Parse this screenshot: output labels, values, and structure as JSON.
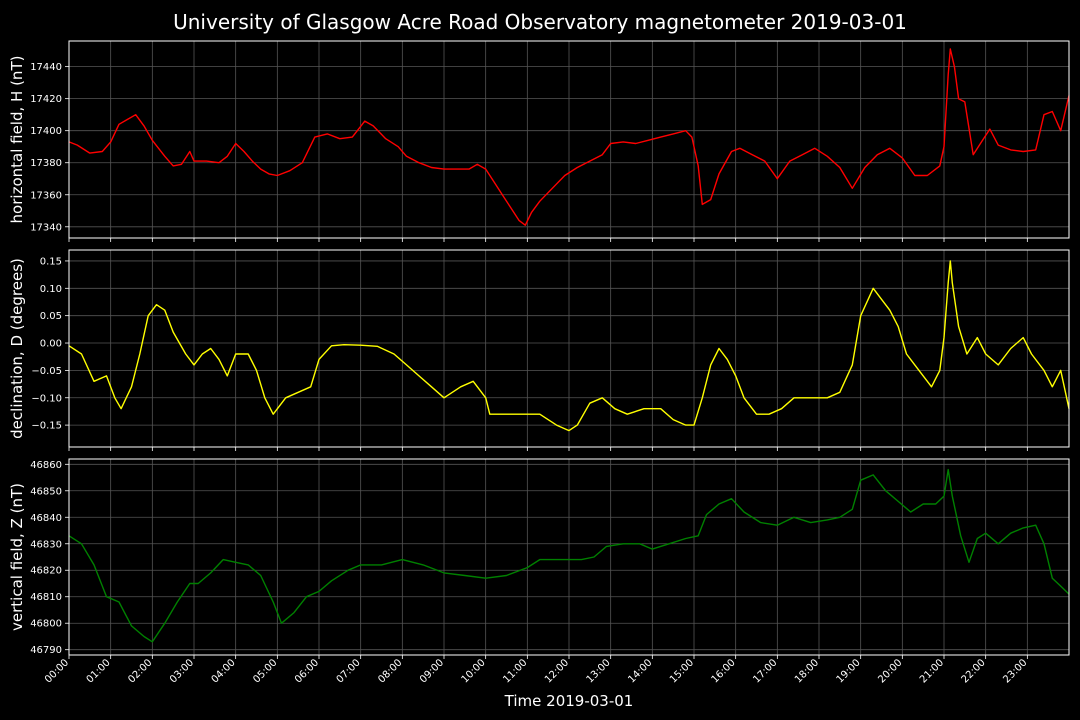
{
  "chart_data": {
    "type": "line",
    "title": "University of Glasgow Acre Road Observatory magnetometer 2019-03-01",
    "xlabel": "Time 2019-03-01",
    "x_range_hours": [
      0,
      24
    ],
    "x_tick_labels": [
      "00:00",
      "01:00",
      "02:00",
      "03:00",
      "04:00",
      "05:00",
      "06:00",
      "07:00",
      "08:00",
      "09:00",
      "10:00",
      "11:00",
      "12:00",
      "13:00",
      "14:00",
      "15:00",
      "16:00",
      "17:00",
      "18:00",
      "19:00",
      "20:00",
      "21:00",
      "22:00",
      "23:00"
    ],
    "grid": true,
    "panels": [
      {
        "ylabel": "horizontal field, H (nT)",
        "ylim": [
          17333,
          17456
        ],
        "yticks": [
          "17340",
          "17360",
          "17380",
          "17400",
          "17420",
          "17440"
        ],
        "ytick_values": [
          17340,
          17360,
          17380,
          17400,
          17420,
          17440
        ],
        "color": "#ff0000",
        "series": [
          [
            0,
            17393
          ],
          [
            0.2,
            17391
          ],
          [
            0.5,
            17386
          ],
          [
            0.8,
            17387
          ],
          [
            1.0,
            17393
          ],
          [
            1.2,
            17404
          ],
          [
            1.4,
            17407
          ],
          [
            1.6,
            17410
          ],
          [
            1.8,
            17403
          ],
          [
            2.0,
            17394
          ],
          [
            2.3,
            17384
          ],
          [
            2.5,
            17378
          ],
          [
            2.7,
            17379
          ],
          [
            2.9,
            17387
          ],
          [
            3.0,
            17381
          ],
          [
            3.3,
            17381
          ],
          [
            3.6,
            17380
          ],
          [
            3.8,
            17384
          ],
          [
            4.0,
            17392
          ],
          [
            4.2,
            17387
          ],
          [
            4.4,
            17381
          ],
          [
            4.6,
            17376
          ],
          [
            4.8,
            17373
          ],
          [
            5.0,
            17372
          ],
          [
            5.3,
            17375
          ],
          [
            5.6,
            17380
          ],
          [
            5.9,
            17396
          ],
          [
            6.2,
            17398
          ],
          [
            6.5,
            17395
          ],
          [
            6.8,
            17396
          ],
          [
            7.1,
            17406
          ],
          [
            7.3,
            17403
          ],
          [
            7.6,
            17395
          ],
          [
            7.9,
            17390
          ],
          [
            8.1,
            17384
          ],
          [
            8.4,
            17380
          ],
          [
            8.7,
            17377
          ],
          [
            9.0,
            17376
          ],
          [
            9.3,
            17376
          ],
          [
            9.6,
            17376
          ],
          [
            9.8,
            17379
          ],
          [
            10.0,
            17376
          ],
          [
            10.2,
            17368
          ],
          [
            10.4,
            17360
          ],
          [
            10.6,
            17352
          ],
          [
            10.8,
            17344
          ],
          [
            10.95,
            17341
          ],
          [
            11.1,
            17349
          ],
          [
            11.3,
            17356
          ],
          [
            11.6,
            17364
          ],
          [
            11.9,
            17372
          ],
          [
            12.2,
            17377
          ],
          [
            12.5,
            17381
          ],
          [
            12.8,
            17385
          ],
          [
            13.0,
            17392
          ],
          [
            13.3,
            17393
          ],
          [
            13.6,
            17392
          ],
          [
            13.9,
            17394
          ],
          [
            14.2,
            17396
          ],
          [
            14.5,
            17398
          ],
          [
            14.8,
            17400
          ],
          [
            14.95,
            17396
          ],
          [
            15.1,
            17378
          ],
          [
            15.2,
            17354
          ],
          [
            15.4,
            17357
          ],
          [
            15.6,
            17373
          ],
          [
            15.9,
            17387
          ],
          [
            16.1,
            17389
          ],
          [
            16.4,
            17385
          ],
          [
            16.7,
            17381
          ],
          [
            17.0,
            17370
          ],
          [
            17.3,
            17381
          ],
          [
            17.6,
            17385
          ],
          [
            17.9,
            17389
          ],
          [
            18.2,
            17384
          ],
          [
            18.5,
            17377
          ],
          [
            18.8,
            17364
          ],
          [
            19.1,
            17377
          ],
          [
            19.4,
            17385
          ],
          [
            19.7,
            17389
          ],
          [
            20.0,
            17383
          ],
          [
            20.3,
            17372
          ],
          [
            20.6,
            17372
          ],
          [
            20.9,
            17378
          ],
          [
            21.0,
            17390
          ],
          [
            21.1,
            17435
          ],
          [
            21.15,
            17451
          ],
          [
            21.25,
            17440
          ],
          [
            21.35,
            17420
          ],
          [
            21.5,
            17418
          ],
          [
            21.7,
            17385
          ],
          [
            21.9,
            17393
          ],
          [
            22.1,
            17401
          ],
          [
            22.3,
            17391
          ],
          [
            22.6,
            17388
          ],
          [
            22.9,
            17387
          ],
          [
            23.2,
            17388
          ],
          [
            23.4,
            17410
          ],
          [
            23.6,
            17412
          ],
          [
            23.8,
            17400
          ],
          [
            24.0,
            17422
          ]
        ]
      },
      {
        "ylabel": "declination, D (degrees)",
        "ylim": [
          -0.19,
          0.17
        ],
        "yticks": [
          "0.15",
          "0.10",
          "0.05",
          "0.00",
          "−0.05",
          "−0.10",
          "−0.15"
        ],
        "ytick_values": [
          0.15,
          0.1,
          0.05,
          0.0,
          -0.05,
          -0.1,
          -0.15
        ],
        "color": "#ffff00",
        "series": [
          [
            0,
            -0.005
          ],
          [
            0.3,
            -0.02
          ],
          [
            0.6,
            -0.07
          ],
          [
            0.9,
            -0.06
          ],
          [
            1.1,
            -0.1
          ],
          [
            1.25,
            -0.12
          ],
          [
            1.5,
            -0.08
          ],
          [
            1.7,
            -0.02
          ],
          [
            1.9,
            0.05
          ],
          [
            2.1,
            0.07
          ],
          [
            2.3,
            0.06
          ],
          [
            2.5,
            0.02
          ],
          [
            2.8,
            -0.02
          ],
          [
            3.0,
            -0.04
          ],
          [
            3.2,
            -0.02
          ],
          [
            3.4,
            -0.01
          ],
          [
            3.6,
            -0.03
          ],
          [
            3.8,
            -0.06
          ],
          [
            4.0,
            -0.02
          ],
          [
            4.3,
            -0.02
          ],
          [
            4.5,
            -0.05
          ],
          [
            4.7,
            -0.1
          ],
          [
            4.9,
            -0.13
          ],
          [
            5.2,
            -0.1
          ],
          [
            5.5,
            -0.09
          ],
          [
            5.8,
            -0.08
          ],
          [
            6.0,
            -0.03
          ],
          [
            6.3,
            -0.005
          ],
          [
            6.6,
            -0.003
          ],
          [
            7.0,
            -0.004
          ],
          [
            7.4,
            -0.006
          ],
          [
            7.8,
            -0.02
          ],
          [
            8.1,
            -0.04
          ],
          [
            8.4,
            -0.06
          ],
          [
            8.7,
            -0.08
          ],
          [
            9.0,
            -0.1
          ],
          [
            9.4,
            -0.08
          ],
          [
            9.7,
            -0.07
          ],
          [
            10.0,
            -0.1
          ],
          [
            10.1,
            -0.13
          ],
          [
            10.5,
            -0.13
          ],
          [
            10.9,
            -0.13
          ],
          [
            11.3,
            -0.13
          ],
          [
            11.7,
            -0.15
          ],
          [
            12.0,
            -0.16
          ],
          [
            12.2,
            -0.15
          ],
          [
            12.5,
            -0.11
          ],
          [
            12.8,
            -0.1
          ],
          [
            13.1,
            -0.12
          ],
          [
            13.4,
            -0.13
          ],
          [
            13.8,
            -0.12
          ],
          [
            14.2,
            -0.12
          ],
          [
            14.5,
            -0.14
          ],
          [
            14.8,
            -0.15
          ],
          [
            15.0,
            -0.15
          ],
          [
            15.2,
            -0.1
          ],
          [
            15.4,
            -0.04
          ],
          [
            15.6,
            -0.01
          ],
          [
            15.8,
            -0.03
          ],
          [
            16.0,
            -0.06
          ],
          [
            16.2,
            -0.1
          ],
          [
            16.5,
            -0.13
          ],
          [
            16.8,
            -0.13
          ],
          [
            17.1,
            -0.12
          ],
          [
            17.4,
            -0.1
          ],
          [
            17.8,
            -0.1
          ],
          [
            18.2,
            -0.1
          ],
          [
            18.5,
            -0.09
          ],
          [
            18.8,
            -0.04
          ],
          [
            19.0,
            0.05
          ],
          [
            19.3,
            0.1
          ],
          [
            19.5,
            0.08
          ],
          [
            19.7,
            0.06
          ],
          [
            19.9,
            0.03
          ],
          [
            20.1,
            -0.02
          ],
          [
            20.3,
            -0.04
          ],
          [
            20.5,
            -0.06
          ],
          [
            20.7,
            -0.08
          ],
          [
            20.9,
            -0.05
          ],
          [
            21.0,
            0.01
          ],
          [
            21.05,
            0.06
          ],
          [
            21.1,
            0.11
          ],
          [
            21.15,
            0.15
          ],
          [
            21.2,
            0.11
          ],
          [
            21.35,
            0.03
          ],
          [
            21.55,
            -0.02
          ],
          [
            21.8,
            0.01
          ],
          [
            22.0,
            -0.02
          ],
          [
            22.3,
            -0.04
          ],
          [
            22.6,
            -0.01
          ],
          [
            22.9,
            0.01
          ],
          [
            23.1,
            -0.02
          ],
          [
            23.4,
            -0.05
          ],
          [
            23.6,
            -0.08
          ],
          [
            23.8,
            -0.05
          ],
          [
            24.0,
            -0.12
          ]
        ]
      },
      {
        "ylabel": "vertical field, Z (nT)",
        "ylim": [
          46788,
          46862
        ],
        "yticks": [
          "46790",
          "46800",
          "46810",
          "46820",
          "46830",
          "46840",
          "46850",
          "46860"
        ],
        "ytick_values": [
          46790,
          46800,
          46810,
          46820,
          46830,
          46840,
          46850,
          46860
        ],
        "color": "#008000",
        "series": [
          [
            0,
            46833
          ],
          [
            0.3,
            46830
          ],
          [
            0.6,
            46822
          ],
          [
            0.9,
            46810
          ],
          [
            1.2,
            46808
          ],
          [
            1.5,
            46799
          ],
          [
            1.8,
            46795
          ],
          [
            2.0,
            46793
          ],
          [
            2.3,
            46800
          ],
          [
            2.6,
            46808
          ],
          [
            2.9,
            46815
          ],
          [
            3.1,
            46815
          ],
          [
            3.4,
            46819
          ],
          [
            3.7,
            46824
          ],
          [
            4.0,
            46823
          ],
          [
            4.3,
            46822
          ],
          [
            4.6,
            46818
          ],
          [
            4.9,
            46808
          ],
          [
            5.1,
            46800
          ],
          [
            5.4,
            46804
          ],
          [
            5.7,
            46810
          ],
          [
            6.0,
            46812
          ],
          [
            6.3,
            46816
          ],
          [
            6.7,
            46820
          ],
          [
            7.0,
            46822
          ],
          [
            7.5,
            46822
          ],
          [
            8.0,
            46824
          ],
          [
            8.5,
            46822
          ],
          [
            9.0,
            46819
          ],
          [
            9.5,
            46818
          ],
          [
            10.0,
            46817
          ],
          [
            10.5,
            46818
          ],
          [
            11.0,
            46821
          ],
          [
            11.3,
            46824
          ],
          [
            11.8,
            46824
          ],
          [
            12.3,
            46824
          ],
          [
            12.6,
            46825
          ],
          [
            12.9,
            46829
          ],
          [
            13.3,
            46830
          ],
          [
            13.7,
            46830
          ],
          [
            14.0,
            46828
          ],
          [
            14.4,
            46830
          ],
          [
            14.8,
            46832
          ],
          [
            15.1,
            46833
          ],
          [
            15.3,
            46841
          ],
          [
            15.6,
            46845
          ],
          [
            15.9,
            46847
          ],
          [
            16.2,
            46842
          ],
          [
            16.6,
            46838
          ],
          [
            17.0,
            46837
          ],
          [
            17.4,
            46840
          ],
          [
            17.8,
            46838
          ],
          [
            18.2,
            46839
          ],
          [
            18.5,
            46840
          ],
          [
            18.8,
            46843
          ],
          [
            19.0,
            46854
          ],
          [
            19.3,
            46856
          ],
          [
            19.6,
            46850
          ],
          [
            19.9,
            46846
          ],
          [
            20.2,
            46842
          ],
          [
            20.5,
            46845
          ],
          [
            20.8,
            46845
          ],
          [
            21.0,
            46848
          ],
          [
            21.1,
            46858
          ],
          [
            21.2,
            46848
          ],
          [
            21.4,
            46833
          ],
          [
            21.6,
            46823
          ],
          [
            21.8,
            46832
          ],
          [
            22.0,
            46834
          ],
          [
            22.3,
            46830
          ],
          [
            22.6,
            46834
          ],
          [
            22.9,
            46836
          ],
          [
            23.2,
            46837
          ],
          [
            23.4,
            46830
          ],
          [
            23.6,
            46817
          ],
          [
            23.8,
            46814
          ],
          [
            24.0,
            46811
          ]
        ]
      }
    ]
  }
}
